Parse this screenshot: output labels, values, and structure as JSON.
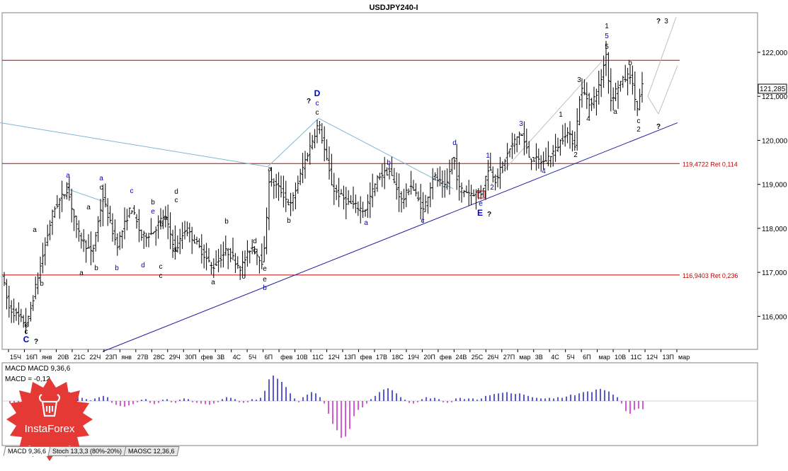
{
  "window": {
    "title": "USDJPY240-I"
  },
  "chart_data": {
    "type": "candlestick",
    "symbol": "USDJPY240-I",
    "ylim": [
      115.25,
      122.9
    ],
    "y_ticks": [
      "116,000",
      "117,000",
      "118,000",
      "119,000",
      "120,000",
      "121,000",
      "122,000"
    ],
    "y_tick_values": [
      116,
      117,
      118,
      119,
      120,
      121,
      122
    ],
    "current_price": "121,285",
    "current_price_value": 121.285,
    "x_labels": [
      "15Ч",
      "16П",
      "янв",
      "20В",
      "21С",
      "22Ч",
      "23П",
      "янв",
      "27В",
      "28С",
      "29Ч",
      "30П",
      "фев",
      "3В",
      "4С",
      "5Ч",
      "6П",
      "фев",
      "10В",
      "11С",
      "12Ч",
      "13П",
      "фев",
      "17В",
      "18С",
      "19Ч",
      "20П",
      "фев",
      "24В",
      "25С",
      "26Ч",
      "27П",
      "мар",
      "3В",
      "4С",
      "5Ч",
      "6П",
      "мар",
      "10В",
      "11С",
      "12Ч",
      "13П",
      "мар"
    ],
    "horizontal_levels": [
      {
        "value": 121.82,
        "label": ""
      },
      {
        "value": 119.4722,
        "label": "119,4722 Ret 0,114"
      },
      {
        "value": 116.9403,
        "label": "116,9403 Ret 0,236"
      }
    ],
    "price_path": [
      [
        0,
        117.2
      ],
      [
        12,
        116.2
      ],
      [
        38,
        115.8
      ],
      [
        55,
        117.0
      ],
      [
        75,
        118.4
      ],
      [
        95,
        118.9
      ],
      [
        110,
        117.9
      ],
      [
        130,
        117.4
      ],
      [
        145,
        118.7
      ],
      [
        165,
        117.6
      ],
      [
        185,
        118.5
      ],
      [
        200,
        117.8
      ],
      [
        215,
        117.9
      ],
      [
        232,
        118.3
      ],
      [
        248,
        117.5
      ],
      [
        262,
        118.0
      ],
      [
        280,
        117.6
      ],
      [
        300,
        117.1
      ],
      [
        320,
        117.5
      ],
      [
        340,
        117.1
      ],
      [
        355,
        117.6
      ],
      [
        372,
        117.2
      ],
      [
        380,
        119.1
      ],
      [
        395,
        118.9
      ],
      [
        410,
        118.5
      ],
      [
        430,
        119.5
      ],
      [
        450,
        120.4
      ],
      [
        462,
        119.5
      ],
      [
        470,
        118.9
      ],
      [
        490,
        118.6
      ],
      [
        515,
        118.4
      ],
      [
        535,
        119.2
      ],
      [
        550,
        119.3
      ],
      [
        568,
        118.6
      ],
      [
        580,
        119.0
      ],
      [
        598,
        118.4
      ],
      [
        612,
        119.2
      ],
      [
        630,
        118.9
      ],
      [
        640,
        119.7
      ],
      [
        648,
        118.9
      ],
      [
        665,
        118.8
      ],
      [
        680,
        118.8
      ],
      [
        690,
        119.4
      ],
      [
        700,
        119.1
      ],
      [
        720,
        119.8
      ],
      [
        735,
        120.2
      ],
      [
        748,
        119.6
      ],
      [
        768,
        119.5
      ],
      [
        785,
        119.8
      ],
      [
        800,
        120.2
      ],
      [
        812,
        119.9
      ],
      [
        820,
        121.2
      ],
      [
        835,
        120.8
      ],
      [
        848,
        121.3
      ],
      [
        856,
        122.0
      ],
      [
        862,
        120.9
      ],
      [
        875,
        121.3
      ],
      [
        890,
        121.5
      ],
      [
        900,
        120.7
      ],
      [
        908,
        121.3
      ]
    ],
    "trend_lines": [
      {
        "from": [
          145,
          115.2
        ],
        "to": [
          957,
          120.4
        ],
        "color": "#2020a0"
      },
      {
        "from": [
          0,
          120.4
        ],
        "to": [
          378,
          119.4
        ],
        "color": "#7fb7d4"
      },
      {
        "from": [
          378,
          119.4
        ],
        "to": [
          450,
          120.5
        ],
        "color": "#7fb7d4"
      },
      {
        "from": [
          450,
          120.5
        ],
        "to": [
          640,
          118.9
        ],
        "color": "#7fb7d4"
      },
      {
        "from": [
          94,
          118.9
        ],
        "to": [
          148,
          118.6
        ],
        "color": "#7fb7d4"
      },
      {
        "from": [
          694,
          119.0
        ],
        "to": [
          856,
          121.9
        ],
        "color": "#c0c0c0"
      },
      {
        "from": [
          915,
          121.0
        ],
        "to": [
          955,
          122.8
        ],
        "color": "#c0c0c0"
      },
      {
        "from": [
          915,
          121.0
        ],
        "to": [
          930,
          120.6
        ],
        "color": "#c0c0c0"
      },
      {
        "from": [
          930,
          120.6
        ],
        "to": [
          957,
          121.7
        ],
        "color": "#c0c0c0"
      }
    ],
    "wave_labels": [
      {
        "text": "c",
        "x": 37,
        "y": 463,
        "color": "#000"
      },
      {
        "text": "c",
        "x": 37,
        "y": 472,
        "color": "#000"
      },
      {
        "text": "C",
        "x": 37,
        "y": 484,
        "color": "#0000c0"
      },
      {
        "text": "?",
        "x": 51,
        "y": 486,
        "color": "#000"
      },
      {
        "text": "b",
        "x": 59,
        "y": 404,
        "color": "#000"
      },
      {
        "text": "a",
        "x": 49,
        "y": 328,
        "color": "#000"
      },
      {
        "text": "a",
        "x": 96,
        "y": 251,
        "color": "#0000c0"
      },
      {
        "text": "b",
        "x": 96,
        "y": 265,
        "color": "#000"
      },
      {
        "text": "a",
        "x": 125,
        "y": 296,
        "color": "#000"
      },
      {
        "text": "a",
        "x": 115,
        "y": 389,
        "color": "#000"
      },
      {
        "text": "b",
        "x": 136,
        "y": 382,
        "color": "#000"
      },
      {
        "text": "a",
        "x": 143,
        "y": 255,
        "color": "#0000c0"
      },
      {
        "text": "c",
        "x": 143,
        "y": 268,
        "color": "#000"
      },
      {
        "text": "b",
        "x": 165,
        "y": 382,
        "color": "#0000c0"
      },
      {
        "text": "c",
        "x": 186,
        "y": 273,
        "color": "#0000c0"
      },
      {
        "text": "b",
        "x": 216,
        "y": 289,
        "color": "#000"
      },
      {
        "text": "e",
        "x": 216,
        "y": 302,
        "color": "#0000c0"
      },
      {
        "text": "b",
        "x": 228,
        "y": 320,
        "color": "#000"
      },
      {
        "text": "a",
        "x": 234,
        "y": 311,
        "color": "#000"
      },
      {
        "text": "d",
        "x": 202,
        "y": 378,
        "color": "#0000c0"
      },
      {
        "text": "c",
        "x": 227,
        "y": 380,
        "color": "#000"
      },
      {
        "text": "c",
        "x": 227,
        "y": 393,
        "color": "#000"
      },
      {
        "text": "d",
        "x": 249,
        "y": 274,
        "color": "#000"
      },
      {
        "text": "c",
        "x": 249,
        "y": 286,
        "color": "#000"
      },
      {
        "text": "a",
        "x": 247,
        "y": 356,
        "color": "#000"
      },
      {
        "text": "b",
        "x": 320,
        "y": 316,
        "color": "#000"
      },
      {
        "text": "a",
        "x": 301,
        "y": 402,
        "color": "#000"
      },
      {
        "text": "c",
        "x": 344,
        "y": 394,
        "color": "#000"
      },
      {
        "text": "d",
        "x": 360,
        "y": 344,
        "color": "#000"
      },
      {
        "text": "c",
        "x": 360,
        "y": 357,
        "color": "#000"
      },
      {
        "text": "e",
        "x": 374,
        "y": 383,
        "color": "#000"
      },
      {
        "text": "e",
        "x": 374,
        "y": 398,
        "color": "#000"
      },
      {
        "text": "b",
        "x": 374,
        "y": 410,
        "color": "#0000c0"
      },
      {
        "text": "a",
        "x": 381,
        "y": 242,
        "color": "#000"
      },
      {
        "text": "b",
        "x": 408,
        "y": 315,
        "color": "#000"
      },
      {
        "text": "?",
        "x": 436,
        "y": 146,
        "color": "#000"
      },
      {
        "text": "D",
        "x": 448,
        "y": 136,
        "color": "#0000c0"
      },
      {
        "text": "c",
        "x": 448,
        "y": 149,
        "color": "#0000c0"
      },
      {
        "text": "c",
        "x": 448,
        "y": 162,
        "color": "#000"
      },
      {
        "text": "a",
        "x": 517,
        "y": 318,
        "color": "#0000c0"
      },
      {
        "text": "b",
        "x": 549,
        "y": 233,
        "color": "#0000c0"
      },
      {
        "text": "c",
        "x": 597,
        "y": 315,
        "color": "#0000c0"
      },
      {
        "text": "d",
        "x": 642,
        "y": 205,
        "color": "#0000c0"
      },
      {
        "text": "e",
        "x": 679,
        "y": 291,
        "color": "#0000c0"
      },
      {
        "text": "E",
        "x": 678,
        "y": 305,
        "color": "#0000c0"
      },
      {
        "text": "?",
        "x": 691,
        "y": 306,
        "color": "#000"
      },
      {
        "text": "1",
        "x": 689,
        "y": 223,
        "color": "#0000c0"
      },
      {
        "text": "2",
        "x": 695,
        "y": 268,
        "color": "#0000c0"
      },
      {
        "text": "3",
        "x": 736,
        "y": 178,
        "color": "#0000c0"
      },
      {
        "text": "4",
        "x": 768,
        "y": 245,
        "color": "#0000c0"
      },
      {
        "text": "1",
        "x": 792,
        "y": 165,
        "color": "#000"
      },
      {
        "text": "2",
        "x": 813,
        "y": 222,
        "color": "#000"
      },
      {
        "text": "3",
        "x": 818,
        "y": 116,
        "color": "#000"
      },
      {
        "text": "4",
        "x": 831,
        "y": 171,
        "color": "#000"
      },
      {
        "text": "1",
        "x": 857,
        "y": 40,
        "color": "#000"
      },
      {
        "text": "5",
        "x": 857,
        "y": 54,
        "color": "#0000c0"
      },
      {
        "text": "5",
        "x": 857,
        "y": 69,
        "color": "#000"
      },
      {
        "text": "b",
        "x": 890,
        "y": 92,
        "color": "#000"
      },
      {
        "text": "a",
        "x": 869,
        "y": 161,
        "color": "#000"
      },
      {
        "text": "c",
        "x": 902,
        "y": 174,
        "color": "#000"
      },
      {
        "text": "2",
        "x": 902,
        "y": 186,
        "color": "#000"
      },
      {
        "text": "?",
        "x": 930,
        "y": 182,
        "color": "#000"
      },
      {
        "text": "?",
        "x": 930,
        "y": 33,
        "color": "#000"
      },
      {
        "text": "3",
        "x": 941,
        "y": 33,
        "color": "#000"
      }
    ],
    "macd": {
      "params": "MACD 9,36,6",
      "value_text": "-0,12",
      "histogram": [
        [
          14,
          -4
        ],
        [
          20,
          -8
        ],
        [
          26,
          -12
        ],
        [
          32,
          -14
        ],
        [
          38,
          -10
        ],
        [
          44,
          -6
        ],
        [
          50,
          -3
        ],
        [
          56,
          2
        ],
        [
          62,
          3
        ],
        [
          68,
          4
        ],
        [
          74,
          6
        ],
        [
          80,
          10
        ],
        [
          86,
          13
        ],
        [
          92,
          15
        ],
        [
          98,
          14
        ],
        [
          104,
          11
        ],
        [
          110,
          8
        ],
        [
          116,
          5
        ],
        [
          122,
          3
        ],
        [
          128,
          1
        ],
        [
          134,
          4
        ],
        [
          140,
          6
        ],
        [
          146,
          8
        ],
        [
          152,
          6
        ],
        [
          158,
          -3
        ],
        [
          164,
          -6
        ],
        [
          170,
          -8
        ],
        [
          176,
          -9
        ],
        [
          182,
          -7
        ],
        [
          188,
          -5
        ],
        [
          194,
          -2
        ],
        [
          200,
          2
        ],
        [
          206,
          3
        ],
        [
          212,
          -3
        ],
        [
          218,
          -5
        ],
        [
          224,
          -3
        ],
        [
          230,
          2
        ],
        [
          236,
          3
        ],
        [
          242,
          -2
        ],
        [
          248,
          -3
        ],
        [
          254,
          2
        ],
        [
          260,
          4
        ],
        [
          266,
          3
        ],
        [
          272,
          -2
        ],
        [
          278,
          -3
        ],
        [
          284,
          -4
        ],
        [
          290,
          -5
        ],
        [
          296,
          -6
        ],
        [
          302,
          -4
        ],
        [
          308,
          -2
        ],
        [
          314,
          3
        ],
        [
          320,
          6
        ],
        [
          326,
          5
        ],
        [
          332,
          3
        ],
        [
          338,
          -2
        ],
        [
          344,
          -3
        ],
        [
          350,
          -2
        ],
        [
          356,
          3
        ],
        [
          362,
          2
        ],
        [
          368,
          5
        ],
        [
          374,
          16
        ],
        [
          380,
          34
        ],
        [
          386,
          40
        ],
        [
          392,
          35
        ],
        [
          398,
          30
        ],
        [
          404,
          22
        ],
        [
          410,
          12
        ],
        [
          416,
          4
        ],
        [
          422,
          -2
        ],
        [
          428,
          6
        ],
        [
          434,
          10
        ],
        [
          440,
          14
        ],
        [
          446,
          12
        ],
        [
          452,
          6
        ],
        [
          458,
          -4
        ],
        [
          464,
          -20
        ],
        [
          470,
          -36
        ],
        [
          476,
          -46
        ],
        [
          482,
          -58
        ],
        [
          488,
          -56
        ],
        [
          494,
          -44
        ],
        [
          500,
          -24
        ],
        [
          506,
          -14
        ],
        [
          512,
          -10
        ],
        [
          518,
          -4
        ],
        [
          524,
          3
        ],
        [
          530,
          8
        ],
        [
          536,
          14
        ],
        [
          542,
          18
        ],
        [
          548,
          20
        ],
        [
          554,
          17
        ],
        [
          560,
          12
        ],
        [
          566,
          6
        ],
        [
          572,
          2
        ],
        [
          578,
          -3
        ],
        [
          584,
          -4
        ],
        [
          590,
          -2
        ],
        [
          596,
          3
        ],
        [
          602,
          6
        ],
        [
          608,
          4
        ],
        [
          614,
          5
        ],
        [
          620,
          3
        ],
        [
          626,
          -2
        ],
        [
          632,
          -3
        ],
        [
          638,
          -2
        ],
        [
          644,
          4
        ],
        [
          650,
          5
        ],
        [
          656,
          3
        ],
        [
          662,
          4
        ],
        [
          668,
          4
        ],
        [
          674,
          2
        ],
        [
          680,
          4
        ],
        [
          686,
          8
        ],
        [
          692,
          9
        ],
        [
          698,
          11
        ],
        [
          704,
          12
        ],
        [
          710,
          13
        ],
        [
          716,
          14
        ],
        [
          722,
          12
        ],
        [
          728,
          11
        ],
        [
          734,
          12
        ],
        [
          740,
          10
        ],
        [
          746,
          8
        ],
        [
          752,
          6
        ],
        [
          758,
          5
        ],
        [
          764,
          4
        ],
        [
          770,
          4
        ],
        [
          776,
          5
        ],
        [
          782,
          4
        ],
        [
          788,
          6
        ],
        [
          794,
          5
        ],
        [
          800,
          7
        ],
        [
          806,
          10
        ],
        [
          812,
          9
        ],
        [
          818,
          12
        ],
        [
          824,
          14
        ],
        [
          830,
          15
        ],
        [
          836,
          14
        ],
        [
          842,
          18
        ],
        [
          848,
          19
        ],
        [
          854,
          17
        ],
        [
          860,
          15
        ],
        [
          866,
          10
        ],
        [
          872,
          6
        ],
        [
          878,
          -4
        ],
        [
          884,
          -16
        ],
        [
          890,
          -20
        ],
        [
          896,
          -14
        ],
        [
          902,
          -12
        ],
        [
          908,
          -13
        ]
      ]
    }
  },
  "colors": {
    "candle": "#000000",
    "level_line": "#c00000",
    "level_label": "#c00000",
    "macd_positive": "#0000c0",
    "macd_negative": "#c000c0",
    "grid_border": "#808080",
    "logo_red": "#e53935"
  },
  "indicator_tabs": [
    {
      "label": "MACD 9,36,6",
      "active": true
    },
    {
      "label": "Stoch 13,3,3 (80%-20%)",
      "active": false
    },
    {
      "label": "MAOSC 12,36,6",
      "active": false
    }
  ],
  "logo": {
    "text": "InstaForex",
    "icon": "bull-icon"
  }
}
